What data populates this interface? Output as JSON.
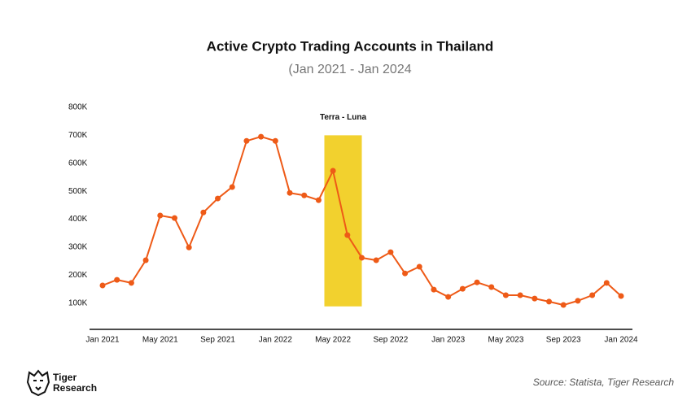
{
  "chart_data": {
    "type": "line",
    "title": "Active Crypto Trading Accounts in Thailand",
    "subtitle": "(Jan 2021 - Jan 2024",
    "categories": [
      "Jan 2021",
      null,
      null,
      null,
      "May 2021",
      null,
      null,
      null,
      "Sep 2021",
      null,
      null,
      null,
      "Jan 2022",
      null,
      null,
      null,
      "May 2022",
      null,
      null,
      null,
      "Sep 2022",
      null,
      null,
      null,
      "Jan 2023",
      null,
      null,
      null,
      "May 2023",
      null,
      null,
      null,
      "Sep 2023",
      null,
      null,
      null,
      "Jan 2024"
    ],
    "series": [
      {
        "color": "#ee5a17",
        "values": [
          163000,
          183000,
          172000,
          253000,
          413000,
          404000,
          299000,
          424000,
          474000,
          515000,
          680000,
          695000,
          680000,
          494000,
          485000,
          468000,
          573000,
          343000,
          262000,
          253000,
          282000,
          206000,
          230000,
          148000,
          122000,
          151000,
          174000,
          157000,
          128000,
          128000,
          116000,
          105000,
          93000,
          108000,
          128000,
          172000,
          125000
        ]
      }
    ],
    "ylim": [
      0,
      800000
    ],
    "yticks": [
      {
        "value": 100000,
        "label": "100K"
      },
      {
        "value": 200000,
        "label": "200K"
      },
      {
        "value": 300000,
        "label": "300K"
      },
      {
        "value": 400000,
        "label": "400K"
      },
      {
        "value": 500000,
        "label": "500K"
      },
      {
        "value": 600000,
        "label": "600K"
      },
      {
        "value": 700000,
        "label": "700K"
      },
      {
        "value": 800000,
        "label": "800K"
      }
    ],
    "grid": false,
    "highlight": {
      "label": "Terra - Luna",
      "color": "#f2d12e",
      "x": [
        15.4,
        18
      ],
      "y": [
        88000,
        700000
      ]
    },
    "source": "Source: Statista, Tiger Research",
    "logo": [
      "Tiger",
      "Research"
    ]
  }
}
